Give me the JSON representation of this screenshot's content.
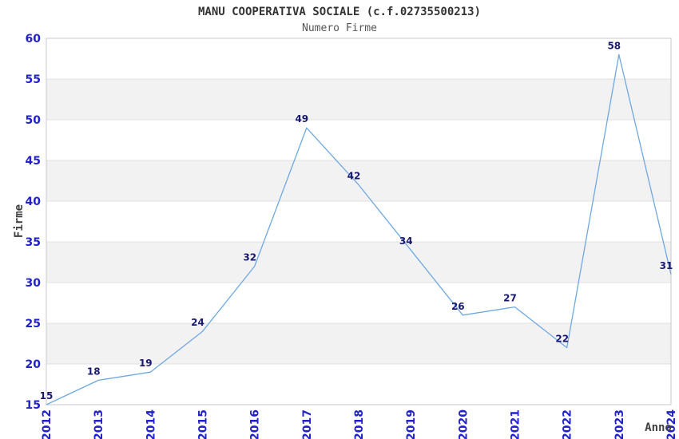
{
  "chart_data": {
    "type": "line",
    "title": "MANU COOPERATIVA SOCIALE (c.f.02735500213)",
    "subtitle": "Numero Firme",
    "xlabel": "Anno",
    "ylabel": "Firme",
    "categories": [
      "2012",
      "2013",
      "2014",
      "2015",
      "2016",
      "2017",
      "2018",
      "2019",
      "2020",
      "2021",
      "2022",
      "2023",
      "2024"
    ],
    "values": [
      15,
      18,
      19,
      24,
      32,
      49,
      42,
      34,
      26,
      27,
      22,
      58,
      31
    ],
    "ylim": [
      15,
      60
    ],
    "ytick_step": 5,
    "yticks": [
      15,
      20,
      25,
      30,
      35,
      40,
      45,
      50,
      55,
      60
    ],
    "grid": "horizontal-bands-alternating",
    "legend": "none",
    "colors": {
      "line": "#6fa8e0",
      "tick_label": "#2222cc",
      "data_label": "#191970",
      "band_fill": "#f2f2f2",
      "grid_line": "#e2e2e2",
      "plot_border": "#c9c9c9",
      "title_text": "#333333",
      "axis_label_text": "#404040",
      "background": "#ffffff"
    }
  }
}
